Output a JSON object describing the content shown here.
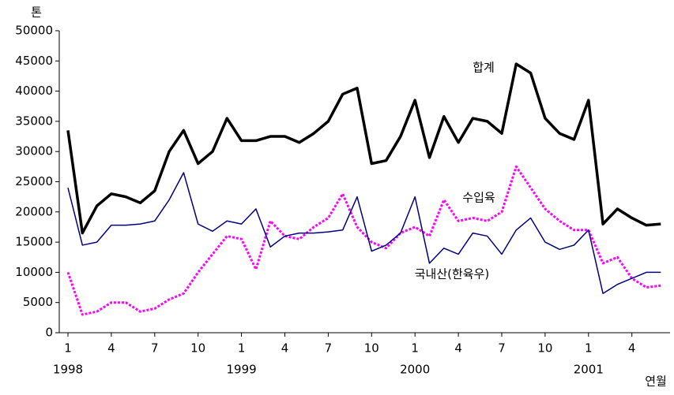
{
  "chart_data": {
    "type": "line",
    "y_axis_label": "톤",
    "x_axis_label": "연월",
    "categories": [
      "1",
      null,
      null,
      "4",
      null,
      null,
      "7",
      null,
      null,
      "10",
      null,
      null,
      "1",
      null,
      null,
      "4",
      null,
      null,
      "7",
      null,
      null,
      "10",
      null,
      null,
      "1",
      null,
      null,
      "4",
      null,
      null,
      "7",
      null,
      null,
      "10",
      null,
      null,
      "1",
      null,
      null,
      "4",
      null,
      null
    ],
    "year_labels": [
      "1998",
      "1999",
      "2000",
      "2001"
    ],
    "ylim": [
      0,
      50000
    ],
    "yticks": [
      0,
      5000,
      10000,
      15000,
      20000,
      25000,
      30000,
      35000,
      40000,
      45000,
      50000
    ],
    "series": [
      {
        "name": "합계",
        "color": "#000000",
        "style": "thick",
        "values": [
          33500,
          16500,
          21000,
          23000,
          22500,
          21500,
          23500,
          30000,
          33500,
          28000,
          30000,
          35500,
          31800,
          31800,
          32500,
          32500,
          31500,
          33000,
          35000,
          39500,
          40500,
          28000,
          28500,
          32500,
          38500,
          29000,
          35800,
          31500,
          35500,
          35000,
          33000,
          44500,
          43000,
          35500,
          33000,
          32000,
          38500,
          18000,
          20500,
          19000,
          17800,
          18000
        ]
      },
      {
        "name": "수입육",
        "color": "#ff00ff",
        "style": "dotted",
        "values": [
          10000,
          3000,
          3500,
          5000,
          5000,
          3500,
          4000,
          5500,
          6500,
          10000,
          13000,
          16000,
          15500,
          10500,
          18500,
          16000,
          15500,
          17500,
          19000,
          23000,
          17500,
          15000,
          14000,
          16500,
          17500,
          16000,
          22000,
          18500,
          19000,
          18500,
          20000,
          27500,
          24000,
          20500,
          18500,
          17000,
          17000,
          11500,
          12500,
          9000,
          7500,
          7800
        ]
      },
      {
        "name": "국내산(한육우)",
        "color": "#000080",
        "style": "thin",
        "values": [
          24000,
          14500,
          15000,
          17800,
          17800,
          18000,
          18500,
          22000,
          26500,
          18000,
          16800,
          18500,
          18000,
          20500,
          14200,
          16000,
          16500,
          16500,
          16700,
          17000,
          22500,
          13500,
          14500,
          16500,
          22500,
          11500,
          14000,
          13000,
          16500,
          16000,
          13000,
          17000,
          19000,
          15000,
          13800,
          14500,
          17000,
          6500,
          8000,
          9000,
          10000,
          10000
        ]
      }
    ]
  }
}
